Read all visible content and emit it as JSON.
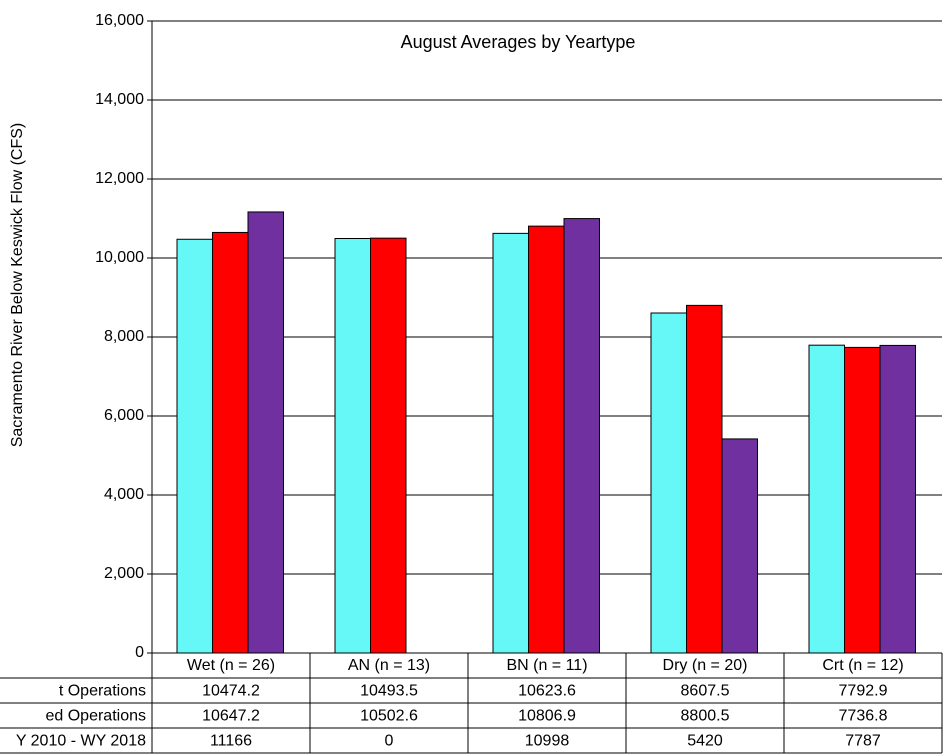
{
  "chart_data": {
    "type": "bar",
    "title": "August Averages by Yeartype",
    "y_label": "Sacramento River Below Keswick Flow (CFS)",
    "categories": [
      "Wet (n = 26)",
      "AN  (n = 13)",
      "BN  (n = 11)",
      "Dry  (n = 20)",
      "Crt  (n = 12)"
    ],
    "series": [
      {
        "name": "t Operations",
        "color": "#66f7f7",
        "values": [
          10474.2,
          10493.5,
          10623.6,
          8607.5,
          7792.9
        ]
      },
      {
        "name": "ed Operations",
        "color": "#ff0000",
        "values": [
          10647.2,
          10502.6,
          10806.9,
          8800.5,
          7736.8
        ]
      },
      {
        "name": "Y 2010 - WY 2018",
        "color": "#7030a0",
        "values": [
          11166,
          0,
          10998,
          5420,
          7787
        ]
      }
    ],
    "ylim": [
      0,
      16000
    ],
    "yticks": [
      0,
      {
        "value": 2000,
        "label": "2,000"
      },
      {
        "value": 4000,
        "label": "4,000"
      },
      {
        "value": 6000,
        "label": "6,000"
      },
      {
        "value": 8000,
        "label": "8,000"
      },
      {
        "value": 10000,
        "label": "10,000"
      },
      {
        "value": 12000,
        "label": "12,000"
      },
      {
        "value": 14000,
        "label": "14,000"
      },
      {
        "value": 16000,
        "label": "16,000"
      }
    ],
    "grid": true
  }
}
